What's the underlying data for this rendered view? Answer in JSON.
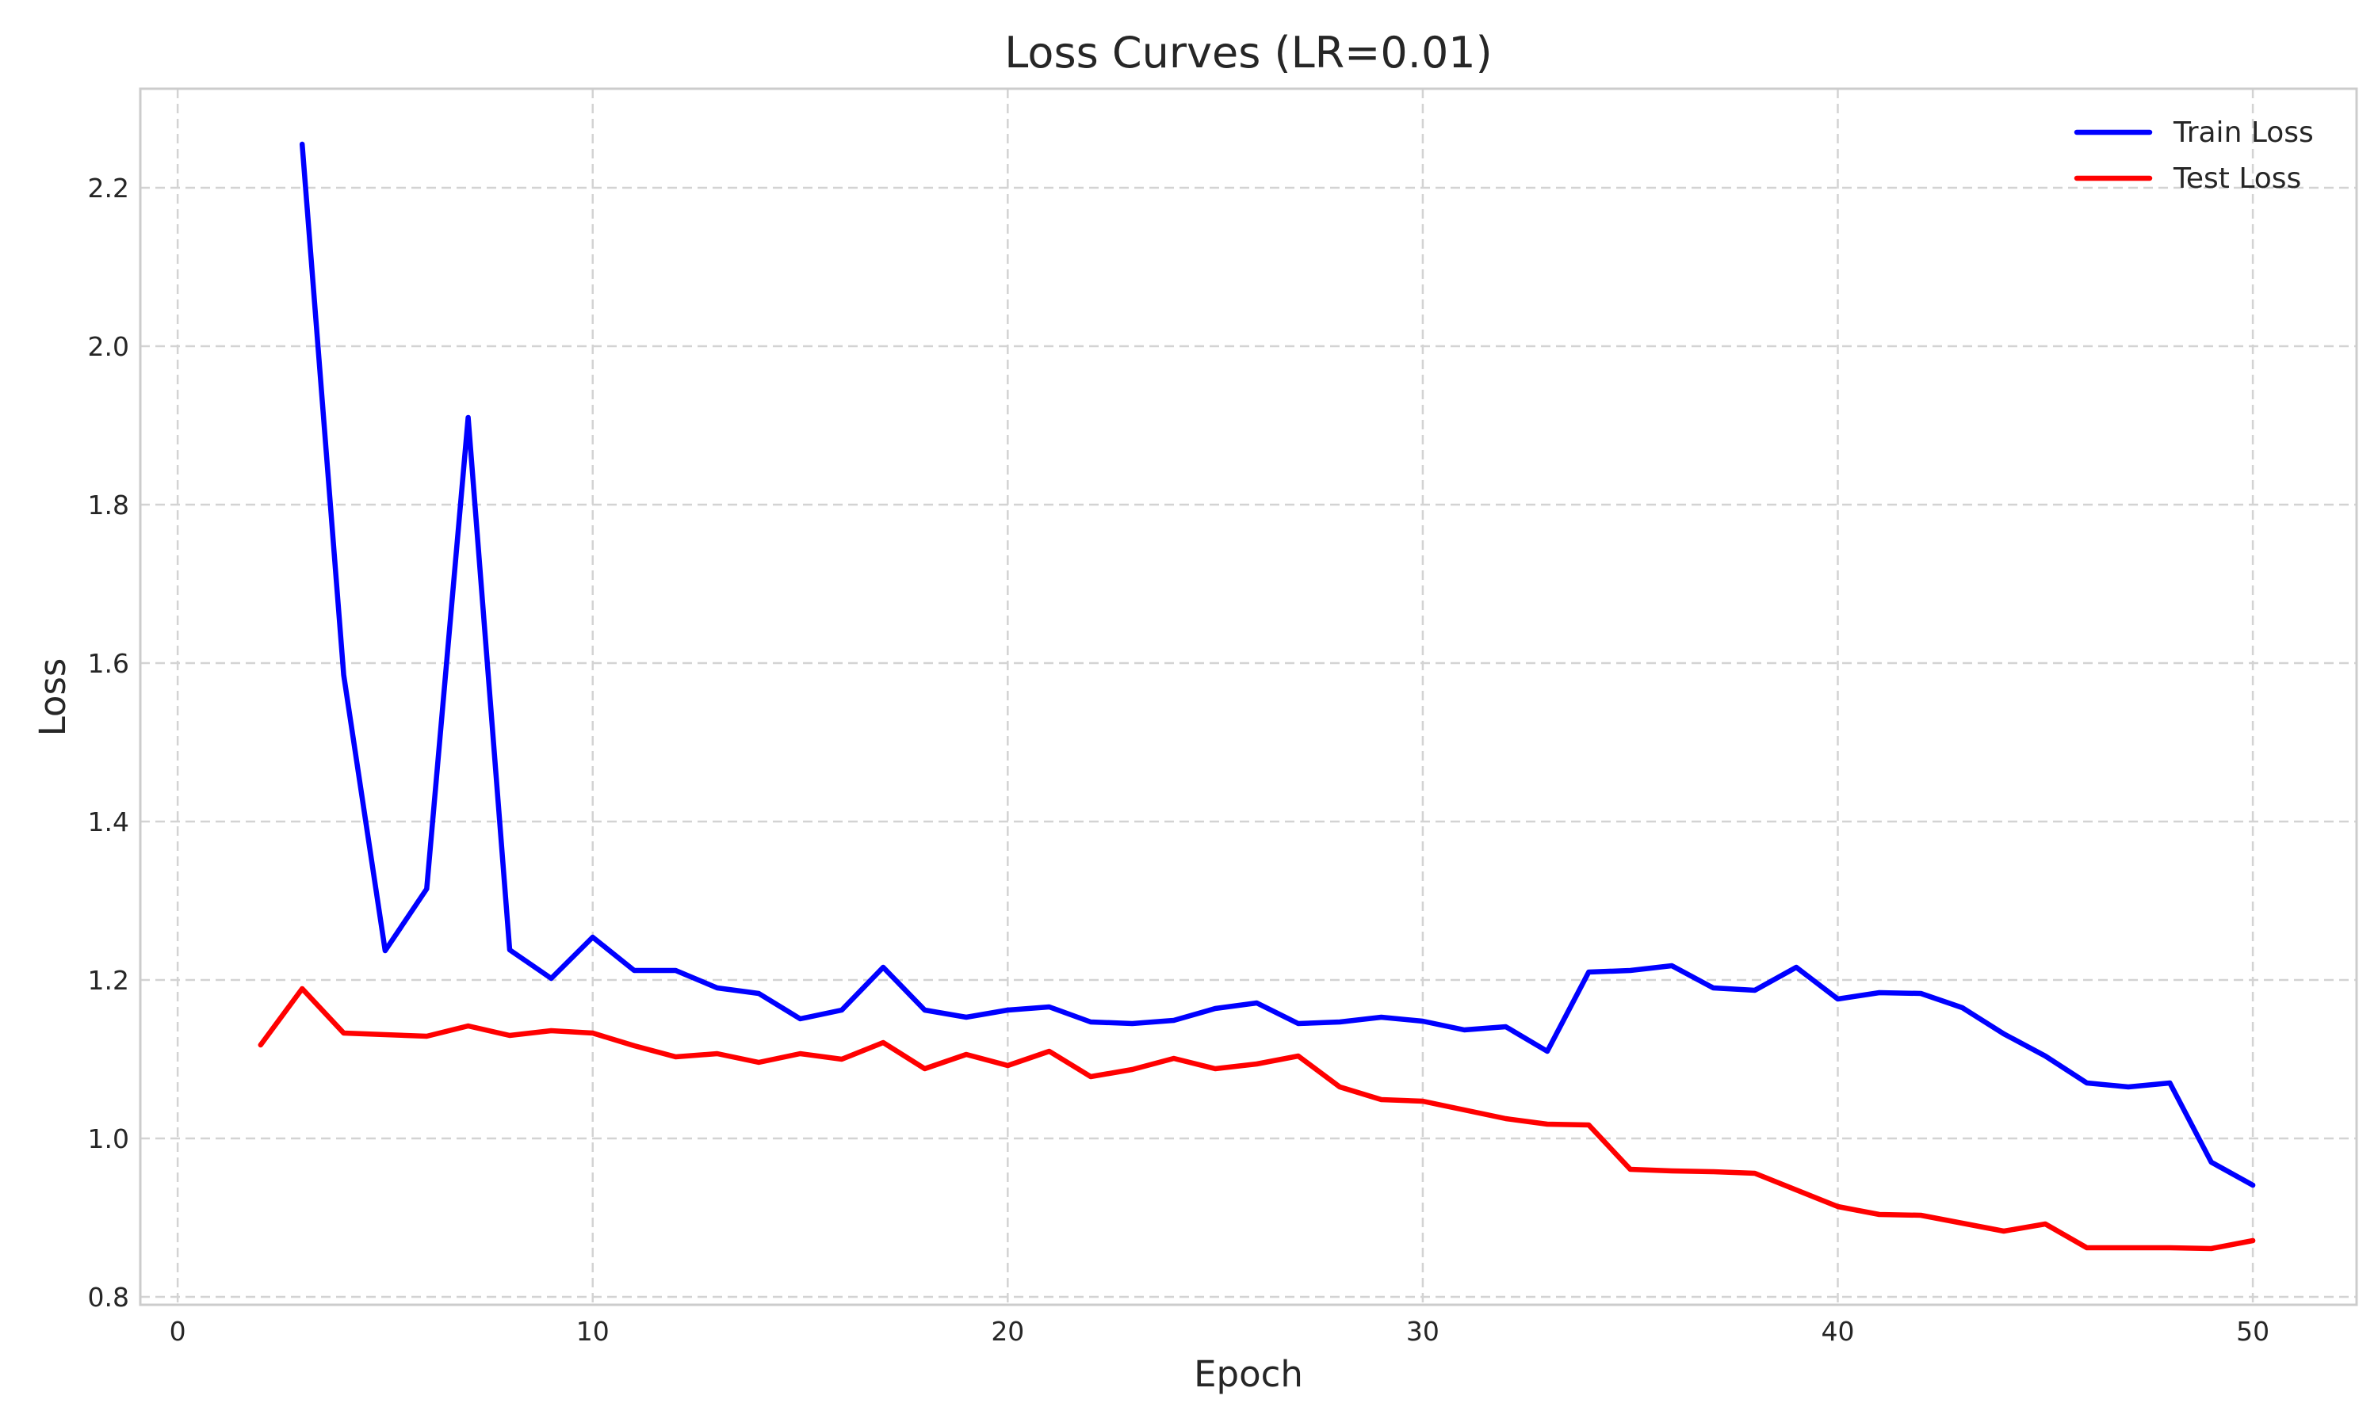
{
  "chart_data": {
    "type": "line",
    "title": "Loss Curves (LR=0.01)",
    "xlabel": "Epoch",
    "ylabel": "Loss",
    "xlim": [
      -0.9,
      52.5
    ],
    "ylim": [
      0.79,
      2.325
    ],
    "xticks": [
      0,
      10,
      20,
      30,
      40,
      50
    ],
    "yticks": [
      0.8,
      1.0,
      1.2,
      1.4,
      1.6,
      1.8,
      2.0,
      2.2
    ],
    "ytick_labels": [
      "0.8",
      "1.0",
      "1.2",
      "1.4",
      "1.6",
      "1.8",
      "2.0",
      "2.2"
    ],
    "grid": true,
    "legend_position": "top-right",
    "series": [
      {
        "name": "Train Loss",
        "color": "#0000ff",
        "x": [
          3,
          4,
          5,
          6,
          7,
          8,
          9,
          10,
          11,
          12,
          13,
          14,
          15,
          16,
          17,
          18,
          19,
          20,
          21,
          22,
          23,
          24,
          25,
          26,
          27,
          28,
          29,
          30,
          31,
          32,
          33,
          34,
          35,
          36,
          37,
          38,
          39,
          40,
          41,
          42,
          43,
          44,
          45,
          46,
          47,
          48,
          49,
          50
        ],
        "values": [
          2.255,
          1.585,
          1.237,
          1.315,
          1.91,
          1.238,
          1.202,
          1.254,
          1.212,
          1.212,
          1.19,
          1.183,
          1.151,
          1.162,
          1.216,
          1.162,
          1.153,
          1.162,
          1.166,
          1.147,
          1.145,
          1.149,
          1.164,
          1.171,
          1.145,
          1.147,
          1.153,
          1.148,
          1.137,
          1.141,
          1.11,
          1.21,
          1.212,
          1.218,
          1.19,
          1.187,
          1.216,
          1.176,
          1.184,
          1.183,
          1.165,
          1.132,
          1.104,
          1.07,
          1.065,
          1.07,
          0.97,
          0.941
        ]
      },
      {
        "name": "Test Loss",
        "color": "#ff0000",
        "x": [
          2,
          3,
          4,
          5,
          6,
          7,
          8,
          9,
          10,
          11,
          12,
          13,
          14,
          15,
          16,
          17,
          18,
          19,
          20,
          21,
          22,
          23,
          24,
          25,
          26,
          27,
          28,
          29,
          30,
          31,
          32,
          33,
          34,
          35,
          36,
          37,
          38,
          39,
          40,
          41,
          42,
          43,
          44,
          45,
          46,
          47,
          48,
          49,
          50
        ],
        "values": [
          1.118,
          1.189,
          1.133,
          1.131,
          1.129,
          1.142,
          1.13,
          1.136,
          1.133,
          1.117,
          1.103,
          1.107,
          1.096,
          1.107,
          1.1,
          1.121,
          1.088,
          1.106,
          1.092,
          1.11,
          1.078,
          1.087,
          1.101,
          1.088,
          1.094,
          1.104,
          1.065,
          1.049,
          1.047,
          1.036,
          1.025,
          1.018,
          1.017,
          0.961,
          0.959,
          0.958,
          0.956,
          0.935,
          0.914,
          0.904,
          0.903,
          0.893,
          0.883,
          0.892,
          0.862,
          0.862,
          0.862,
          0.861,
          0.871
        ]
      }
    ]
  }
}
